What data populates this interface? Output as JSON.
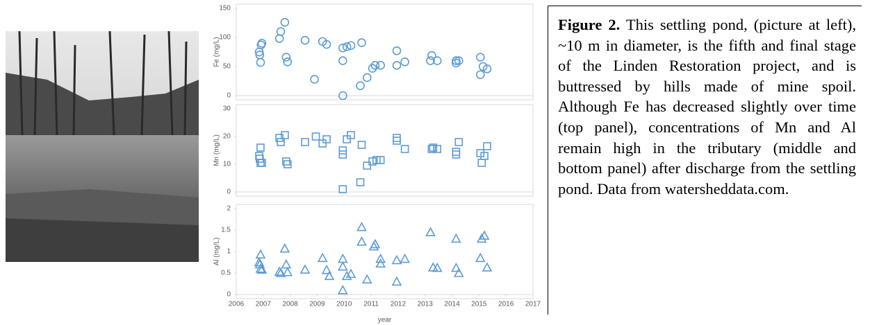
{
  "chart_data": [
    {
      "type": "scatter",
      "y_label": "Fe (mg/L)",
      "marker": "circle",
      "color": "#5b9bd5",
      "xlim": [
        2006,
        2017
      ],
      "ylim": [
        0,
        150
      ],
      "yticks": [
        0,
        50,
        100,
        150
      ],
      "x": [
        2006.85,
        2006.87,
        2006.9,
        2006.92,
        2006.95,
        2007.6,
        2007.65,
        2007.8,
        2007.85,
        2007.9,
        2008.55,
        2009.2,
        2009.35,
        2008.9,
        2009.95,
        2010.1,
        2010.25,
        2009.95,
        2009.95,
        2010.65,
        2010.6,
        2010.85,
        2011.05,
        2011.15,
        2011.35,
        2011.95,
        2011.95,
        2012.25,
        2013.25,
        2013.2,
        2013.45,
        2014.15,
        2014.15,
        2014.25,
        2015.05,
        2015.05,
        2015.15,
        2015.3
      ],
      "values": [
        75,
        70,
        57,
        87,
        90,
        98,
        110,
        126,
        66,
        58,
        95,
        93,
        88,
        28,
        82,
        84,
        86,
        60,
        0,
        91,
        17,
        31,
        47,
        52,
        52,
        77,
        52,
        58,
        69,
        60,
        60,
        60,
        56,
        60,
        66,
        36,
        50,
        46
      ]
    },
    {
      "type": "scatter",
      "y_label": "Mn (mg/L)",
      "marker": "square",
      "color": "#5b9bd5",
      "xlim": [
        2006,
        2017
      ],
      "ylim": [
        0,
        30
      ],
      "yticks": [
        0,
        10,
        20,
        30
      ],
      "x": [
        2006.85,
        2006.87,
        2006.9,
        2006.9,
        2006.95,
        2007.6,
        2007.65,
        2007.8,
        2007.85,
        2007.9,
        2008.55,
        2008.95,
        2009.2,
        2009.35,
        2009.95,
        2009.95,
        2009.95,
        2010.1,
        2010.25,
        2010.65,
        2010.6,
        2010.85,
        2011.05,
        2011.2,
        2011.35,
        2011.95,
        2011.95,
        2012.25,
        2013.25,
        2013.3,
        2013.45,
        2014.15,
        2014.15,
        2014.25,
        2015.05,
        2015.1,
        2015.2,
        2015.3
      ],
      "values": [
        13,
        12,
        16,
        10.5,
        10.5,
        19.5,
        18,
        20.5,
        11,
        10,
        18,
        20,
        17.5,
        19,
        15,
        13.5,
        1,
        19,
        20.5,
        17,
        3.5,
        9.5,
        11,
        11.5,
        11.5,
        18.5,
        19.5,
        15.5,
        15.5,
        16,
        15.5,
        14.5,
        13.5,
        18,
        14,
        10.5,
        13,
        16.5
      ]
    },
    {
      "type": "scatter",
      "y_label": "Al (mg/L)",
      "marker": "triangle",
      "color": "#5b9bd5",
      "x_label": "year",
      "xlim": [
        2006,
        2017
      ],
      "xticks": [
        2006,
        2007,
        2008,
        2009,
        2010,
        2011,
        2012,
        2013,
        2014,
        2015,
        2016,
        2017
      ],
      "ylim": [
        0,
        2
      ],
      "yticks": [
        0,
        0.5,
        1,
        1.5,
        2
      ],
      "x": [
        2006.85,
        2006.87,
        2006.9,
        2006.9,
        2006.95,
        2007.6,
        2007.65,
        2007.8,
        2007.85,
        2007.9,
        2008.55,
        2009.2,
        2009.35,
        2009.45,
        2009.95,
        2009.95,
        2009.95,
        2010.1,
        2010.25,
        2010.65,
        2010.65,
        2010.85,
        2011.1,
        2011.15,
        2011.35,
        2011.35,
        2011.95,
        2011.95,
        2012.25,
        2013.2,
        2013.3,
        2013.45,
        2014.15,
        2014.15,
        2014.25,
        2015.05,
        2015.1,
        2015.2,
        2015.3
      ],
      "values": [
        0.75,
        0.7,
        0.6,
        0.93,
        0.58,
        0.53,
        0.5,
        1.07,
        0.7,
        0.52,
        0.58,
        0.85,
        0.57,
        0.43,
        0.83,
        0.65,
        0.1,
        0.43,
        0.48,
        1.57,
        1.23,
        0.35,
        1.12,
        1.17,
        0.83,
        0.72,
        0.3,
        0.8,
        0.83,
        1.45,
        0.63,
        0.62,
        1.3,
        0.62,
        0.5,
        0.85,
        1.3,
        1.37,
        0.63
      ]
    }
  ],
  "caption": {
    "label": "Figure 2.",
    "text": "This settling pond, (picture at left), ~10 m in diameter, is the fifth and final stage of the Linden Restoration project, and is buttressed by hills made of mine spoil. Although Fe has decreased slightly over time (top panel), concentrations of Mn and Al remain high in the tributary (middle and bottom panel) after discharge from the settling pond. Data from watersheddata.com."
  }
}
